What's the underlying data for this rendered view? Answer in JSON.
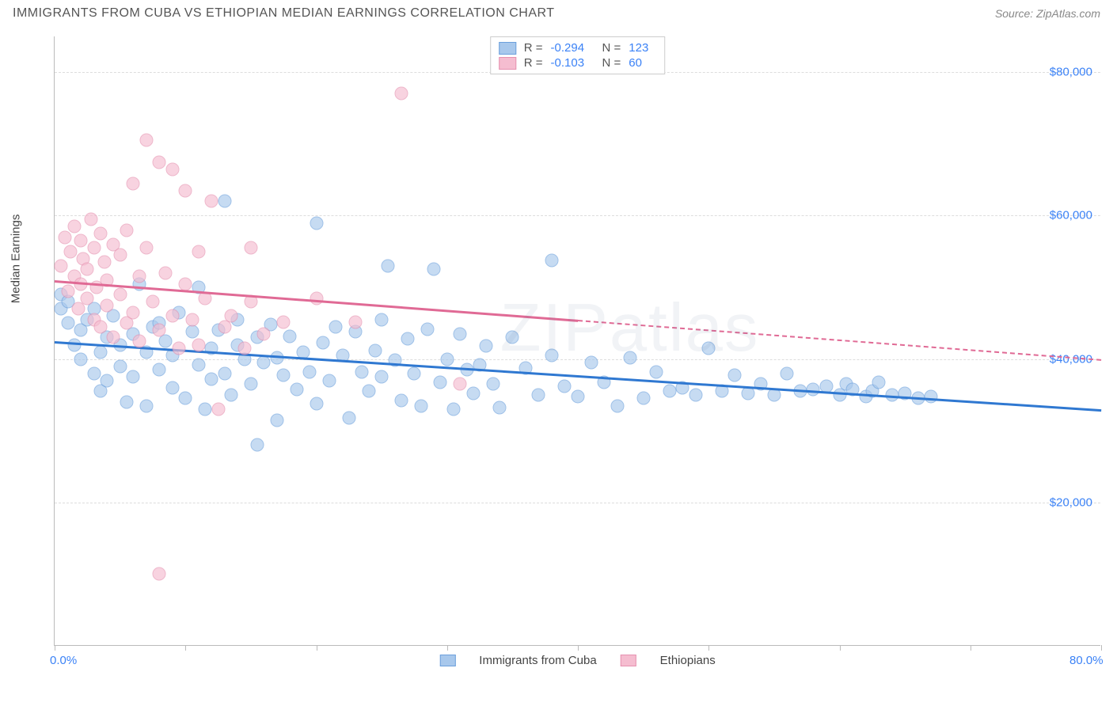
{
  "header": {
    "title": "IMMIGRANTS FROM CUBA VS ETHIOPIAN MEDIAN EARNINGS CORRELATION CHART",
    "source": "Source: ZipAtlas.com"
  },
  "watermark": "ZIPatlas",
  "chart": {
    "type": "scatter",
    "ylabel": "Median Earnings",
    "x_domain": [
      0,
      80
    ],
    "y_domain": [
      0,
      85000
    ],
    "x_ticks": [
      0,
      10,
      20,
      30,
      40,
      50,
      60,
      70,
      80
    ],
    "x_axis_labels": [
      {
        "value": 0,
        "text": "0.0%"
      },
      {
        "value": 80,
        "text": "80.0%"
      }
    ],
    "y_ticks": [
      {
        "value": 20000,
        "text": "$20,000"
      },
      {
        "value": 40000,
        "text": "$40,000"
      },
      {
        "value": 60000,
        "text": "$60,000"
      },
      {
        "value": 80000,
        "text": "$80,000"
      }
    ],
    "background_color": "#ffffff",
    "grid_color": "#dddddd",
    "marker_radius": 8.5,
    "marker_opacity": 0.65,
    "series": [
      {
        "name": "Immigrants from Cuba",
        "fill_color": "#a8c8ec",
        "stroke_color": "#6ca0dc",
        "line_color": "#2f78d1",
        "R": "-0.294",
        "N": "123",
        "regression": {
          "x1": 0,
          "y1": 42500,
          "x2": 80,
          "y2": 33000
        },
        "points": [
          {
            "x": 0.5,
            "y": 49000
          },
          {
            "x": 0.5,
            "y": 47000
          },
          {
            "x": 1,
            "y": 45000
          },
          {
            "x": 1,
            "y": 48000
          },
          {
            "x": 1.5,
            "y": 42000
          },
          {
            "x": 2,
            "y": 44000
          },
          {
            "x": 2,
            "y": 40000
          },
          {
            "x": 2.5,
            "y": 45500
          },
          {
            "x": 3,
            "y": 38000
          },
          {
            "x": 3,
            "y": 47000
          },
          {
            "x": 3.5,
            "y": 41000
          },
          {
            "x": 3.5,
            "y": 35500
          },
          {
            "x": 4,
            "y": 43000
          },
          {
            "x": 4,
            "y": 37000
          },
          {
            "x": 4.5,
            "y": 46000
          },
          {
            "x": 5,
            "y": 39000
          },
          {
            "x": 5,
            "y": 42000
          },
          {
            "x": 5.5,
            "y": 34000
          },
          {
            "x": 6,
            "y": 43500
          },
          {
            "x": 6,
            "y": 37500
          },
          {
            "x": 6.5,
            "y": 50500
          },
          {
            "x": 7,
            "y": 41000
          },
          {
            "x": 7,
            "y": 33500
          },
          {
            "x": 7.5,
            "y": 44500
          },
          {
            "x": 8,
            "y": 38500
          },
          {
            "x": 8,
            "y": 45000
          },
          {
            "x": 8.5,
            "y": 42500
          },
          {
            "x": 9,
            "y": 36000
          },
          {
            "x": 9,
            "y": 40500
          },
          {
            "x": 9.5,
            "y": 46500
          },
          {
            "x": 10,
            "y": 34500
          },
          {
            "x": 10.5,
            "y": 43800
          },
          {
            "x": 11,
            "y": 39200
          },
          {
            "x": 11,
            "y": 50000
          },
          {
            "x": 11.5,
            "y": 33000
          },
          {
            "x": 12,
            "y": 41500
          },
          {
            "x": 12,
            "y": 37200
          },
          {
            "x": 12.5,
            "y": 44000
          },
          {
            "x": 13,
            "y": 62000
          },
          {
            "x": 13,
            "y": 38000
          },
          {
            "x": 13.5,
            "y": 35000
          },
          {
            "x": 14,
            "y": 42000
          },
          {
            "x": 14,
            "y": 45500
          },
          {
            "x": 14.5,
            "y": 40000
          },
          {
            "x": 15,
            "y": 36500
          },
          {
            "x": 15.5,
            "y": 43000
          },
          {
            "x": 15.5,
            "y": 28000
          },
          {
            "x": 16,
            "y": 39500
          },
          {
            "x": 16.5,
            "y": 44800
          },
          {
            "x": 17,
            "y": 31500
          },
          {
            "x": 17,
            "y": 40200
          },
          {
            "x": 17.5,
            "y": 37800
          },
          {
            "x": 18,
            "y": 43200
          },
          {
            "x": 18.5,
            "y": 35800
          },
          {
            "x": 19,
            "y": 41000
          },
          {
            "x": 19.5,
            "y": 38200
          },
          {
            "x": 20,
            "y": 59000
          },
          {
            "x": 20,
            "y": 33800
          },
          {
            "x": 20.5,
            "y": 42300
          },
          {
            "x": 21,
            "y": 37000
          },
          {
            "x": 21.5,
            "y": 44500
          },
          {
            "x": 22,
            "y": 40500
          },
          {
            "x": 22.5,
            "y": 31800
          },
          {
            "x": 23,
            "y": 43800
          },
          {
            "x": 23.5,
            "y": 38200
          },
          {
            "x": 24,
            "y": 35500
          },
          {
            "x": 24.5,
            "y": 41200
          },
          {
            "x": 25,
            "y": 45500
          },
          {
            "x": 25,
            "y": 37500
          },
          {
            "x": 25.5,
            "y": 53000
          },
          {
            "x": 26,
            "y": 39800
          },
          {
            "x": 26.5,
            "y": 34200
          },
          {
            "x": 27,
            "y": 42800
          },
          {
            "x": 27.5,
            "y": 38000
          },
          {
            "x": 28,
            "y": 33500
          },
          {
            "x": 28.5,
            "y": 44200
          },
          {
            "x": 29,
            "y": 52500
          },
          {
            "x": 29.5,
            "y": 36800
          },
          {
            "x": 30,
            "y": 40000
          },
          {
            "x": 30.5,
            "y": 33000
          },
          {
            "x": 31,
            "y": 43500
          },
          {
            "x": 31.5,
            "y": 38500
          },
          {
            "x": 32,
            "y": 35200
          },
          {
            "x": 32.5,
            "y": 39200
          },
          {
            "x": 33,
            "y": 41800
          },
          {
            "x": 33.5,
            "y": 36500
          },
          {
            "x": 34,
            "y": 33200
          },
          {
            "x": 35,
            "y": 43000
          },
          {
            "x": 36,
            "y": 38800
          },
          {
            "x": 37,
            "y": 35000
          },
          {
            "x": 38,
            "y": 40500
          },
          {
            "x": 38,
            "y": 53800
          },
          {
            "x": 39,
            "y": 36200
          },
          {
            "x": 40,
            "y": 34800
          },
          {
            "x": 41,
            "y": 39500
          },
          {
            "x": 42,
            "y": 36800
          },
          {
            "x": 43,
            "y": 33500
          },
          {
            "x": 44,
            "y": 40200
          },
          {
            "x": 45,
            "y": 34500
          },
          {
            "x": 46,
            "y": 38200
          },
          {
            "x": 47,
            "y": 35500
          },
          {
            "x": 48,
            "y": 36000
          },
          {
            "x": 49,
            "y": 35000
          },
          {
            "x": 50,
            "y": 41500
          },
          {
            "x": 51,
            "y": 35500
          },
          {
            "x": 52,
            "y": 37800
          },
          {
            "x": 53,
            "y": 35200
          },
          {
            "x": 54,
            "y": 36500
          },
          {
            "x": 55,
            "y": 35000
          },
          {
            "x": 56,
            "y": 38000
          },
          {
            "x": 57,
            "y": 35500
          },
          {
            "x": 58,
            "y": 35800
          },
          {
            "x": 59,
            "y": 36200
          },
          {
            "x": 60,
            "y": 35000
          },
          {
            "x": 60.5,
            "y": 36500
          },
          {
            "x": 61,
            "y": 35800
          },
          {
            "x": 62,
            "y": 34800
          },
          {
            "x": 62.5,
            "y": 35500
          },
          {
            "x": 63,
            "y": 36800
          },
          {
            "x": 64,
            "y": 35000
          },
          {
            "x": 65,
            "y": 35200
          },
          {
            "x": 66,
            "y": 34500
          },
          {
            "x": 67,
            "y": 34800
          }
        ]
      },
      {
        "name": "Ethiopians",
        "fill_color": "#f5bdd0",
        "stroke_color": "#e691b0",
        "line_color": "#e06a95",
        "R": "-0.103",
        "N": "60",
        "regression": {
          "x1": 0,
          "y1": 51000,
          "x2": 40,
          "y2": 45500
        },
        "regression_dash": {
          "x1": 40,
          "y1": 45500,
          "x2": 80,
          "y2": 40000
        },
        "points": [
          {
            "x": 0.5,
            "y": 53000
          },
          {
            "x": 0.8,
            "y": 57000
          },
          {
            "x": 1,
            "y": 49500
          },
          {
            "x": 1.2,
            "y": 55000
          },
          {
            "x": 1.5,
            "y": 51500
          },
          {
            "x": 1.5,
            "y": 58500
          },
          {
            "x": 1.8,
            "y": 47000
          },
          {
            "x": 2,
            "y": 56500
          },
          {
            "x": 2,
            "y": 50500
          },
          {
            "x": 2.2,
            "y": 54000
          },
          {
            "x": 2.5,
            "y": 48500
          },
          {
            "x": 2.5,
            "y": 52500
          },
          {
            "x": 2.8,
            "y": 59500
          },
          {
            "x": 3,
            "y": 45500
          },
          {
            "x": 3,
            "y": 55500
          },
          {
            "x": 3.2,
            "y": 50000
          },
          {
            "x": 3.5,
            "y": 57500
          },
          {
            "x": 3.5,
            "y": 44500
          },
          {
            "x": 3.8,
            "y": 53500
          },
          {
            "x": 4,
            "y": 47500
          },
          {
            "x": 4,
            "y": 51000
          },
          {
            "x": 4.5,
            "y": 56000
          },
          {
            "x": 4.5,
            "y": 43000
          },
          {
            "x": 5,
            "y": 49000
          },
          {
            "x": 5,
            "y": 54500
          },
          {
            "x": 5.5,
            "y": 45000
          },
          {
            "x": 5.5,
            "y": 58000
          },
          {
            "x": 6,
            "y": 64500
          },
          {
            "x": 6,
            "y": 46500
          },
          {
            "x": 6.5,
            "y": 51500
          },
          {
            "x": 6.5,
            "y": 42500
          },
          {
            "x": 7,
            "y": 55500
          },
          {
            "x": 7,
            "y": 70500
          },
          {
            "x": 7.5,
            "y": 48000
          },
          {
            "x": 8,
            "y": 67500
          },
          {
            "x": 8,
            "y": 44000
          },
          {
            "x": 8.5,
            "y": 52000
          },
          {
            "x": 9,
            "y": 46000
          },
          {
            "x": 9,
            "y": 66500
          },
          {
            "x": 9.5,
            "y": 41500
          },
          {
            "x": 8,
            "y": 10000
          },
          {
            "x": 10,
            "y": 50500
          },
          {
            "x": 10,
            "y": 63500
          },
          {
            "x": 10.5,
            "y": 45500
          },
          {
            "x": 11,
            "y": 55000
          },
          {
            "x": 11,
            "y": 42000
          },
          {
            "x": 11.5,
            "y": 48500
          },
          {
            "x": 12,
            "y": 62000
          },
          {
            "x": 12.5,
            "y": 33000
          },
          {
            "x": 13,
            "y": 44500
          },
          {
            "x": 13.5,
            "y": 46000
          },
          {
            "x": 14.5,
            "y": 41500
          },
          {
            "x": 15,
            "y": 48000
          },
          {
            "x": 15,
            "y": 55500
          },
          {
            "x": 16,
            "y": 43500
          },
          {
            "x": 17.5,
            "y": 45200
          },
          {
            "x": 20,
            "y": 48500
          },
          {
            "x": 23,
            "y": 45200
          },
          {
            "x": 26.5,
            "y": 77000
          },
          {
            "x": 31,
            "y": 36500
          }
        ]
      }
    ],
    "bottom_legend": [
      {
        "label": "Immigrants from Cuba",
        "fill": "#a8c8ec",
        "stroke": "#6ca0dc"
      },
      {
        "label": "Ethiopians",
        "fill": "#f5bdd0",
        "stroke": "#e691b0"
      }
    ]
  }
}
